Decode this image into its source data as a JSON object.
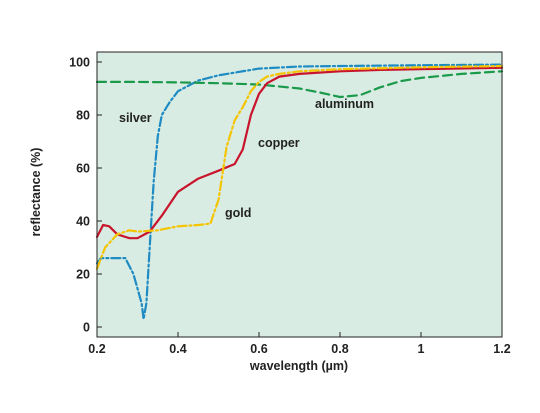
{
  "chart_data": {
    "type": "line",
    "title": "",
    "xlabel": "wavelength (µm)",
    "ylabel": "reflectance (%)",
    "xlim": [
      0.2,
      1.2
    ],
    "ylim": [
      0,
      100
    ],
    "grid": false,
    "legend": "labels-on-curves",
    "x_ticks": [
      "0.2",
      "0.4",
      "0.6",
      "0.8",
      "1",
      "1.2"
    ],
    "y_ticks": [
      "0",
      "20",
      "40",
      "60",
      "80",
      "100"
    ],
    "background_color": "#d9ece3",
    "series": [
      {
        "name": "silver",
        "color": "#1e8bc3",
        "dash": "dashdot",
        "points": [
          [
            0.2,
            24
          ],
          [
            0.21,
            26
          ],
          [
            0.27,
            26
          ],
          [
            0.29,
            20
          ],
          [
            0.31,
            9
          ],
          [
            0.315,
            3
          ],
          [
            0.322,
            9
          ],
          [
            0.33,
            30
          ],
          [
            0.34,
            55
          ],
          [
            0.35,
            72
          ],
          [
            0.36,
            80
          ],
          [
            0.38,
            85
          ],
          [
            0.4,
            89
          ],
          [
            0.45,
            93
          ],
          [
            0.5,
            95
          ],
          [
            0.6,
            97.5
          ],
          [
            0.7,
            98.3
          ],
          [
            0.8,
            98.5
          ],
          [
            1.0,
            98.8
          ],
          [
            1.2,
            99
          ]
        ]
      },
      {
        "name": "aluminum",
        "color": "#1a9a4a",
        "dash": "dash",
        "points": [
          [
            0.2,
            92.5
          ],
          [
            0.3,
            92.5
          ],
          [
            0.4,
            92.3
          ],
          [
            0.5,
            92
          ],
          [
            0.6,
            91.5
          ],
          [
            0.7,
            90
          ],
          [
            0.75,
            88.5
          ],
          [
            0.8,
            86.8
          ],
          [
            0.85,
            87.5
          ],
          [
            0.9,
            90.5
          ],
          [
            0.95,
            92.8
          ],
          [
            1.0,
            94
          ],
          [
            1.1,
            95.5
          ],
          [
            1.2,
            96.5
          ]
        ]
      },
      {
        "name": "copper",
        "color": "#c8142c",
        "dash": "solid",
        "points": [
          [
            0.2,
            34
          ],
          [
            0.215,
            38.5
          ],
          [
            0.23,
            38
          ],
          [
            0.25,
            35
          ],
          [
            0.28,
            33.5
          ],
          [
            0.3,
            33.5
          ],
          [
            0.33,
            36
          ],
          [
            0.36,
            42
          ],
          [
            0.4,
            51
          ],
          [
            0.45,
            56
          ],
          [
            0.5,
            59
          ],
          [
            0.54,
            61.5
          ],
          [
            0.56,
            67
          ],
          [
            0.58,
            80
          ],
          [
            0.6,
            88
          ],
          [
            0.62,
            92
          ],
          [
            0.65,
            94.5
          ],
          [
            0.7,
            95.5
          ],
          [
            0.8,
            96.5
          ],
          [
            0.9,
            97
          ],
          [
            1.0,
            97.3
          ],
          [
            1.2,
            97.8
          ]
        ]
      },
      {
        "name": "gold",
        "color": "#f5c400",
        "dash": "dashdot",
        "points": [
          [
            0.2,
            22
          ],
          [
            0.22,
            30
          ],
          [
            0.25,
            35
          ],
          [
            0.28,
            36.5
          ],
          [
            0.3,
            36
          ],
          [
            0.35,
            36.5
          ],
          [
            0.4,
            38
          ],
          [
            0.45,
            38.5
          ],
          [
            0.48,
            39
          ],
          [
            0.5,
            48
          ],
          [
            0.52,
            68
          ],
          [
            0.54,
            78
          ],
          [
            0.56,
            83
          ],
          [
            0.58,
            89
          ],
          [
            0.6,
            92.5
          ],
          [
            0.62,
            94.5
          ],
          [
            0.65,
            95.5
          ],
          [
            0.7,
            96.5
          ],
          [
            0.8,
            97.3
          ],
          [
            1.0,
            98
          ],
          [
            1.2,
            98.5
          ]
        ]
      }
    ]
  }
}
